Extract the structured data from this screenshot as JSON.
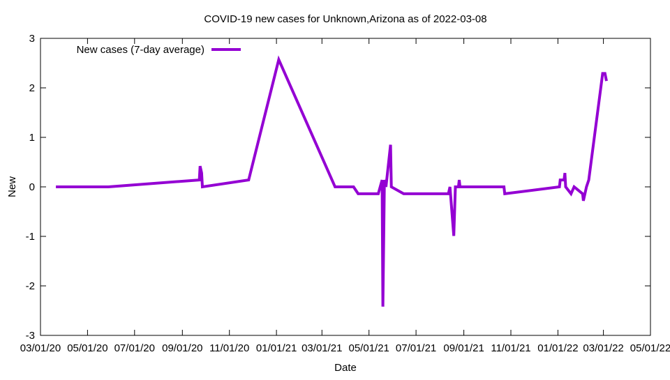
{
  "chart_data": {
    "type": "line",
    "title": "COVID-19 new cases for Unknown,Arizona as of 2022-03-08",
    "xlabel": "Date",
    "ylabel": "New",
    "xlim": [
      "2020-03-01",
      "2022-05-01"
    ],
    "ylim": [
      -3,
      3
    ],
    "yticks": [
      -3,
      -2,
      -1,
      0,
      1,
      2,
      3
    ],
    "xticks": [
      {
        "date": "2020-03-01",
        "label": "03/01/20"
      },
      {
        "date": "2020-05-01",
        "label": "05/01/20"
      },
      {
        "date": "2020-07-01",
        "label": "07/01/20"
      },
      {
        "date": "2020-09-01",
        "label": "09/01/20"
      },
      {
        "date": "2020-11-01",
        "label": "11/01/20"
      },
      {
        "date": "2021-01-01",
        "label": "01/01/21"
      },
      {
        "date": "2021-03-01",
        "label": "03/01/21"
      },
      {
        "date": "2021-05-01",
        "label": "05/01/21"
      },
      {
        "date": "2021-07-01",
        "label": "07/01/21"
      },
      {
        "date": "2021-09-01",
        "label": "09/01/21"
      },
      {
        "date": "2021-11-01",
        "label": "11/01/21"
      },
      {
        "date": "2022-01-01",
        "label": "01/01/22"
      },
      {
        "date": "2022-03-01",
        "label": "03/01/22"
      },
      {
        "date": "2022-05-01",
        "label": "05/01/22"
      }
    ],
    "grid": false,
    "legend_position": "top-left",
    "series": [
      {
        "name": "New cases (7-day average)",
        "color": "#9400d3",
        "points": [
          [
            "2020-03-21",
            0
          ],
          [
            "2020-05-28",
            0
          ],
          [
            "2020-09-23",
            0.14
          ],
          [
            "2020-09-24",
            0.42
          ],
          [
            "2020-09-26",
            0.28
          ],
          [
            "2020-09-27",
            0
          ],
          [
            "2020-11-26",
            0.14
          ],
          [
            "2021-01-04",
            2.57
          ],
          [
            "2021-03-18",
            0
          ],
          [
            "2021-04-11",
            0
          ],
          [
            "2021-04-17",
            -0.14
          ],
          [
            "2021-05-13",
            -0.14
          ],
          [
            "2021-05-18",
            0.14
          ],
          [
            "2021-05-19",
            -2.42
          ],
          [
            "2021-05-21",
            0.14
          ],
          [
            "2021-05-23",
            0
          ],
          [
            "2021-05-29",
            0.85
          ],
          [
            "2021-05-30",
            0
          ],
          [
            "2021-06-15",
            -0.14
          ],
          [
            "2021-08-12",
            -0.14
          ],
          [
            "2021-08-14",
            0
          ],
          [
            "2021-08-19",
            -0.99
          ],
          [
            "2021-08-21",
            0
          ],
          [
            "2021-08-25",
            0
          ],
          [
            "2021-08-26",
            0.14
          ],
          [
            "2021-08-27",
            0
          ],
          [
            "2021-10-23",
            0
          ],
          [
            "2021-10-24",
            -0.14
          ],
          [
            "2022-01-03",
            0
          ],
          [
            "2022-01-04",
            0.14
          ],
          [
            "2022-01-09",
            0.14
          ],
          [
            "2022-01-10",
            0.28
          ],
          [
            "2022-01-11",
            0
          ],
          [
            "2022-01-18",
            -0.14
          ],
          [
            "2022-01-22",
            0
          ],
          [
            "2022-02-02",
            -0.14
          ],
          [
            "2022-02-03",
            -0.28
          ],
          [
            "2022-02-05",
            -0.14
          ],
          [
            "2022-02-07",
            0
          ],
          [
            "2022-02-10",
            0.14
          ],
          [
            "2022-02-28",
            2.29
          ],
          [
            "2022-03-03",
            2.29
          ],
          [
            "2022-03-05",
            2.14
          ]
        ]
      }
    ]
  }
}
